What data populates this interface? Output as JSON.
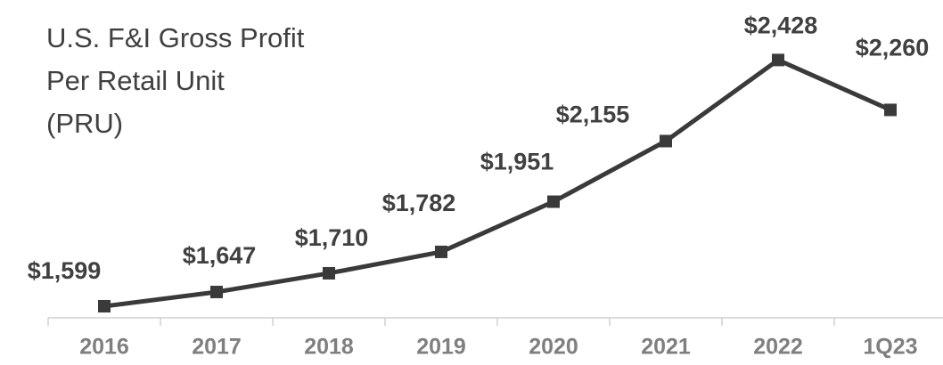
{
  "chart_data": {
    "type": "line",
    "title": [
      "U.S. F&I Gross Profit",
      "Per Retail Unit",
      "(PRU)"
    ],
    "categories": [
      "2016",
      "2017",
      "2018",
      "2019",
      "2020",
      "2021",
      "2022",
      "1Q23"
    ],
    "values": [
      1599,
      1647,
      1710,
      1782,
      1951,
      2155,
      2428,
      2260
    ],
    "value_labels": [
      "$1,599",
      "$1,647",
      "$1,710",
      "$1,782",
      "$1,951",
      "$2,155",
      "$2,428",
      "$2,260"
    ],
    "color": "#3a3a3a",
    "ylim": [
      1560,
      2630
    ]
  }
}
